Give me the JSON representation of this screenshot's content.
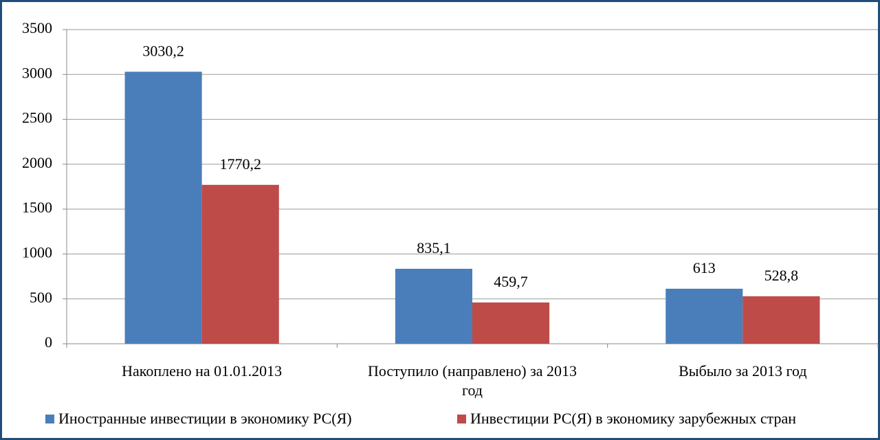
{
  "chart_data": {
    "type": "bar",
    "categories": [
      "Накоплено на 01.01.2013",
      "Поступило (направлено) за 2013 год",
      "Выбыло за 2013 год"
    ],
    "series": [
      {
        "name": "Иностранные инвестиции в экономику РС(Я)",
        "color": "#4a7ebb",
        "values": [
          3030.2,
          835.1,
          613
        ],
        "value_labels": [
          "3030,2",
          "835,1",
          "613"
        ]
      },
      {
        "name": "Инвестиции РС(Я) в экономику зарубежных стран",
        "color": "#be4b48",
        "values": [
          1770.2,
          459.7,
          528.8
        ],
        "value_labels": [
          "1770,2",
          "459,7",
          "528,8"
        ]
      }
    ],
    "ylim": [
      0,
      3500
    ],
    "yticks": [
      0,
      500,
      1000,
      1500,
      2000,
      2500,
      3000,
      3500
    ],
    "grid": true
  }
}
